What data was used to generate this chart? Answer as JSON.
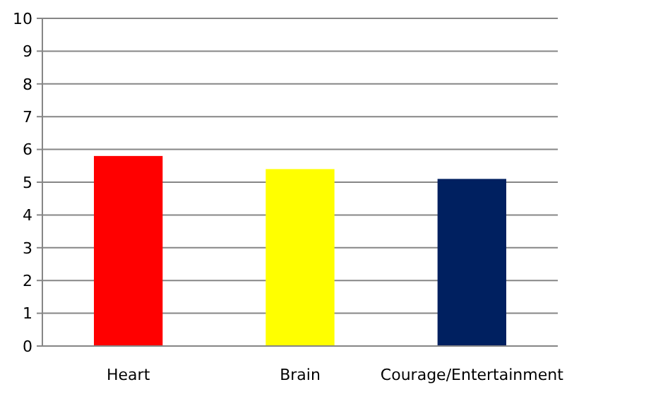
{
  "chart_data": {
    "type": "bar",
    "categories": [
      "Heart",
      "Brain",
      "Courage/Entertainment"
    ],
    "values": [
      5.8,
      5.4,
      5.1
    ],
    "colors": [
      "#ff0000",
      "#ffff00",
      "#002060"
    ],
    "ylim": [
      0,
      10
    ],
    "yticks": [
      0,
      1,
      2,
      3,
      4,
      5,
      6,
      7,
      8,
      9,
      10
    ],
    "grid": "y"
  }
}
